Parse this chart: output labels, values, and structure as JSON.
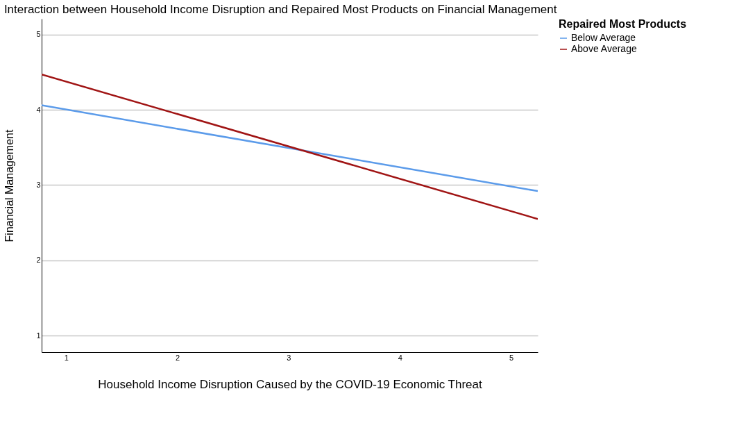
{
  "chart_data": {
    "type": "line",
    "title": "Interaction between Household Income Disruption and Repaired Most Products on Financial Management",
    "xlabel": "Household Income Disruption Caused by the COVID-19 Economic Threat",
    "ylabel": "Financial Management",
    "legend_title": "Repaired Most Products",
    "x": [
      0.78,
      5.24
    ],
    "series": [
      {
        "name": "Below Average",
        "color": "#5b9bea",
        "values": [
          4.06,
          2.92
        ]
      },
      {
        "name": "Above Average",
        "color": "#a01414",
        "values": [
          4.47,
          2.55
        ]
      }
    ],
    "xlim": [
      0.78,
      5.24
    ],
    "ylim": [
      0.78,
      5.21
    ],
    "xticks": [
      1,
      2,
      3,
      4,
      5
    ],
    "yticks": [
      1,
      2,
      3,
      4,
      5
    ],
    "grid": "y",
    "legend": "right",
    "marker": "none",
    "line_style": "solid"
  }
}
